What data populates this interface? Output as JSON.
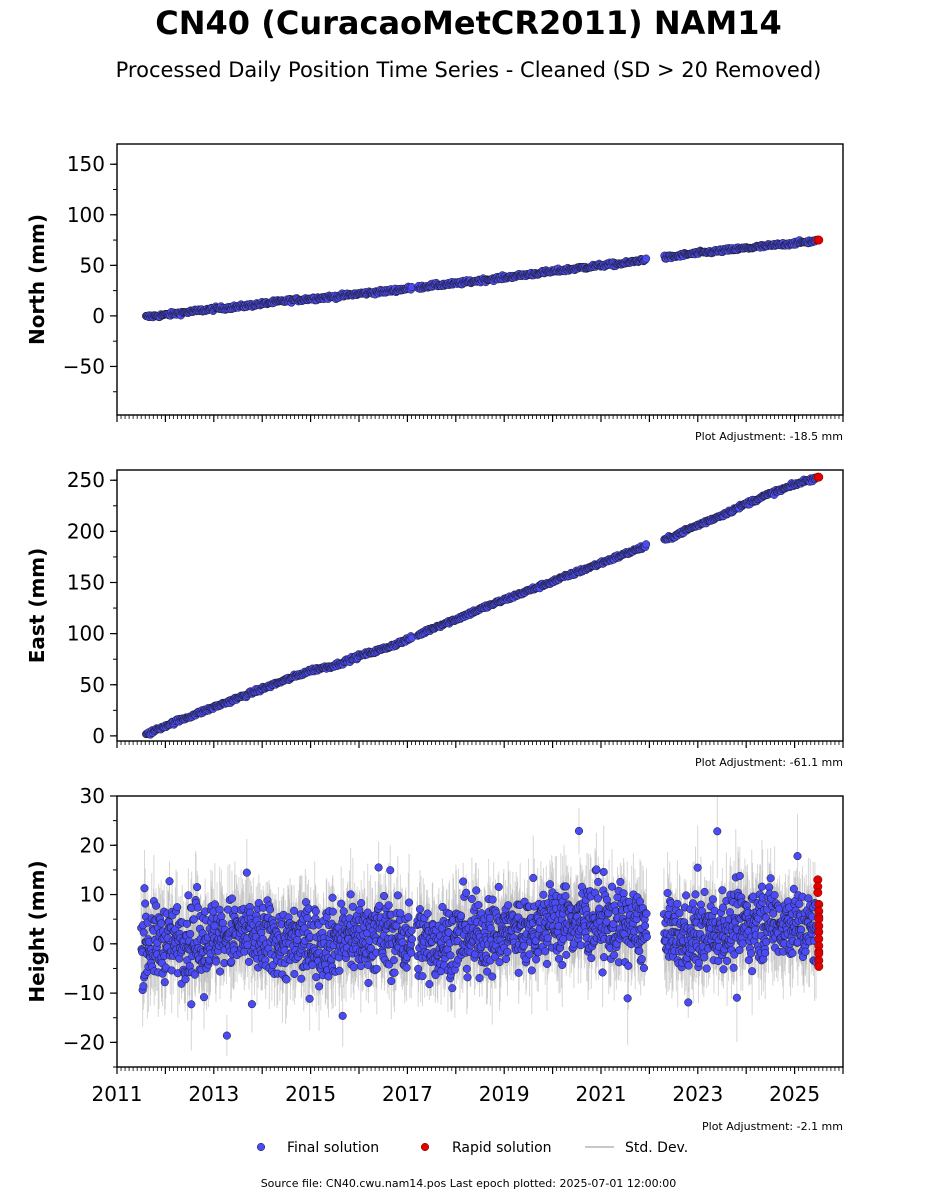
{
  "title": "CN40 (CuracaoMetCR2011) NAM14",
  "subtitle": "Processed Daily Position Time Series - Cleaned (SD > 20 Removed)",
  "source_note": "Source file: CN40.cwu.nam14.pos  Last epoch plotted: 2025-07-01 12:00:00",
  "colors": {
    "final": "#4b4bf5",
    "rapid": "#e00000",
    "std_dev": "#b5b5b5",
    "marker_edge": "#1a1a1a"
  },
  "legend": {
    "final_label": "Final solution",
    "rapid_label": "Rapid solution",
    "std_label": "Std. Dev."
  },
  "chart_data": [
    {
      "type": "scatter",
      "ylabel": "North (mm)",
      "xlim": [
        2011,
        2026
      ],
      "ylim": [
        -98,
        170
      ],
      "yticks": [
        -50,
        0,
        50,
        100,
        150
      ],
      "adjustment": "Plot Adjustment: -18.5 mm",
      "series": [
        {
          "name": "Final solution",
          "x": [
            2011.6,
            2012.0,
            2012.5,
            2013.0,
            2013.5,
            2014.0,
            2014.5,
            2015.0,
            2015.5,
            2016.0,
            2016.5,
            2017.0,
            2017.2,
            2017.5,
            2018.0,
            2018.5,
            2019.0,
            2019.5,
            2020.0,
            2020.5,
            2021.0,
            2021.5,
            2021.9,
            2022.4,
            2022.8,
            2023.2,
            2023.6,
            2024.0,
            2024.4,
            2024.8,
            2025.2,
            2025.45
          ],
          "y": [
            -1,
            1,
            4,
            7,
            9,
            12,
            15,
            17,
            19,
            22,
            24,
            27,
            28,
            30,
            32,
            35,
            38,
            41,
            44,
            47,
            50,
            52,
            56,
            58,
            61,
            63,
            65,
            67,
            69,
            71,
            73,
            74
          ]
        },
        {
          "name": "Rapid solution",
          "x": [
            2025.48,
            2025.5
          ],
          "y": [
            75,
            75
          ]
        }
      ]
    },
    {
      "type": "scatter",
      "ylabel": "East (mm)",
      "xlim": [
        2011,
        2026
      ],
      "ylim": [
        -5,
        260
      ],
      "yticks": [
        0,
        50,
        100,
        150,
        200,
        250
      ],
      "adjustment": "Plot Adjustment: -61.1 mm",
      "series": [
        {
          "name": "Final solution",
          "x": [
            2011.6,
            2012.0,
            2012.5,
            2013.0,
            2013.5,
            2014.0,
            2014.5,
            2015.0,
            2015.5,
            2016.0,
            2016.5,
            2017.0,
            2017.2,
            2017.5,
            2018.0,
            2018.5,
            2019.0,
            2019.5,
            2020.0,
            2020.5,
            2021.0,
            2021.5,
            2021.9,
            2022.4,
            2022.8,
            2023.2,
            2023.6,
            2024.0,
            2024.4,
            2024.8,
            2025.2,
            2025.45
          ],
          "y": [
            1,
            10,
            19,
            28,
            37,
            46,
            55,
            64,
            69,
            78,
            85,
            94,
            98,
            105,
            114,
            124,
            133,
            142,
            151,
            160,
            169,
            178,
            185,
            193,
            202,
            210,
            218,
            227,
            235,
            242,
            249,
            252
          ]
        },
        {
          "name": "Rapid solution",
          "x": [
            2025.48,
            2025.5
          ],
          "y": [
            253,
            253
          ]
        }
      ]
    },
    {
      "type": "scatter",
      "ylabel": "Height (mm)",
      "xlim": [
        2011,
        2026
      ],
      "ylim": [
        -25,
        30
      ],
      "yticks": [
        -20,
        -10,
        0,
        10,
        20,
        30
      ],
      "xticks": [
        2011,
        2013,
        2015,
        2017,
        2019,
        2021,
        2023,
        2025
      ],
      "adjustment": "Plot Adjustment: -2.1 mm",
      "data_segments": [
        [
          2011.5,
          2017.1
        ],
        [
          2017.2,
          2021.95
        ],
        [
          2022.3,
          2025.45
        ]
      ],
      "y_range": [
        -10,
        13
      ],
      "series": [
        {
          "name": "Final solution",
          "x": [
            2011.6,
            2012.5,
            2013.5,
            2014.5,
            2015.5,
            2016.5,
            2017.5,
            2018.5,
            2019.5,
            2020.5,
            2021.5,
            2022.5,
            2023.5,
            2024.5,
            2025.3
          ],
          "y": [
            0,
            1,
            2,
            0,
            1,
            2,
            0,
            2,
            3,
            5,
            4,
            1,
            3,
            5,
            3
          ]
        },
        {
          "name": "Rapid solution",
          "x": [
            2025.48,
            2025.5,
            2025.5,
            2025.5,
            2025.5
          ],
          "y": [
            13,
            8,
            5,
            1,
            -2
          ]
        }
      ]
    }
  ]
}
